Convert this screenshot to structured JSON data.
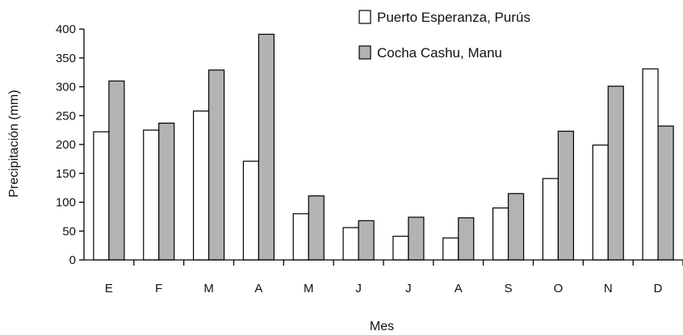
{
  "chart_data": {
    "type": "bar",
    "categories": [
      "E",
      "F",
      "M",
      "A",
      "M",
      "J",
      "J",
      "A",
      "S",
      "O",
      "N",
      "D"
    ],
    "series": [
      {
        "name": "Puerto Esperanza, Purús",
        "values": [
          222,
          225,
          258,
          171,
          80,
          56,
          41,
          38,
          90,
          141,
          199,
          331
        ],
        "color": "#ffffff"
      },
      {
        "name": "Cocha Cashu, Manu",
        "values": [
          310,
          237,
          329,
          391,
          111,
          68,
          74,
          73,
          115,
          223,
          301,
          232
        ],
        "color": "#b3b3b3"
      }
    ],
    "yticks": [
      "0",
      "50",
      "100",
      "150",
      "200",
      "250",
      "300",
      "350",
      "400"
    ],
    "ylim": [
      0,
      400
    ],
    "ylabel": "Precipitación (mm)",
    "xlabel": "Mes",
    "legend_position": "top-right",
    "grid": false
  }
}
